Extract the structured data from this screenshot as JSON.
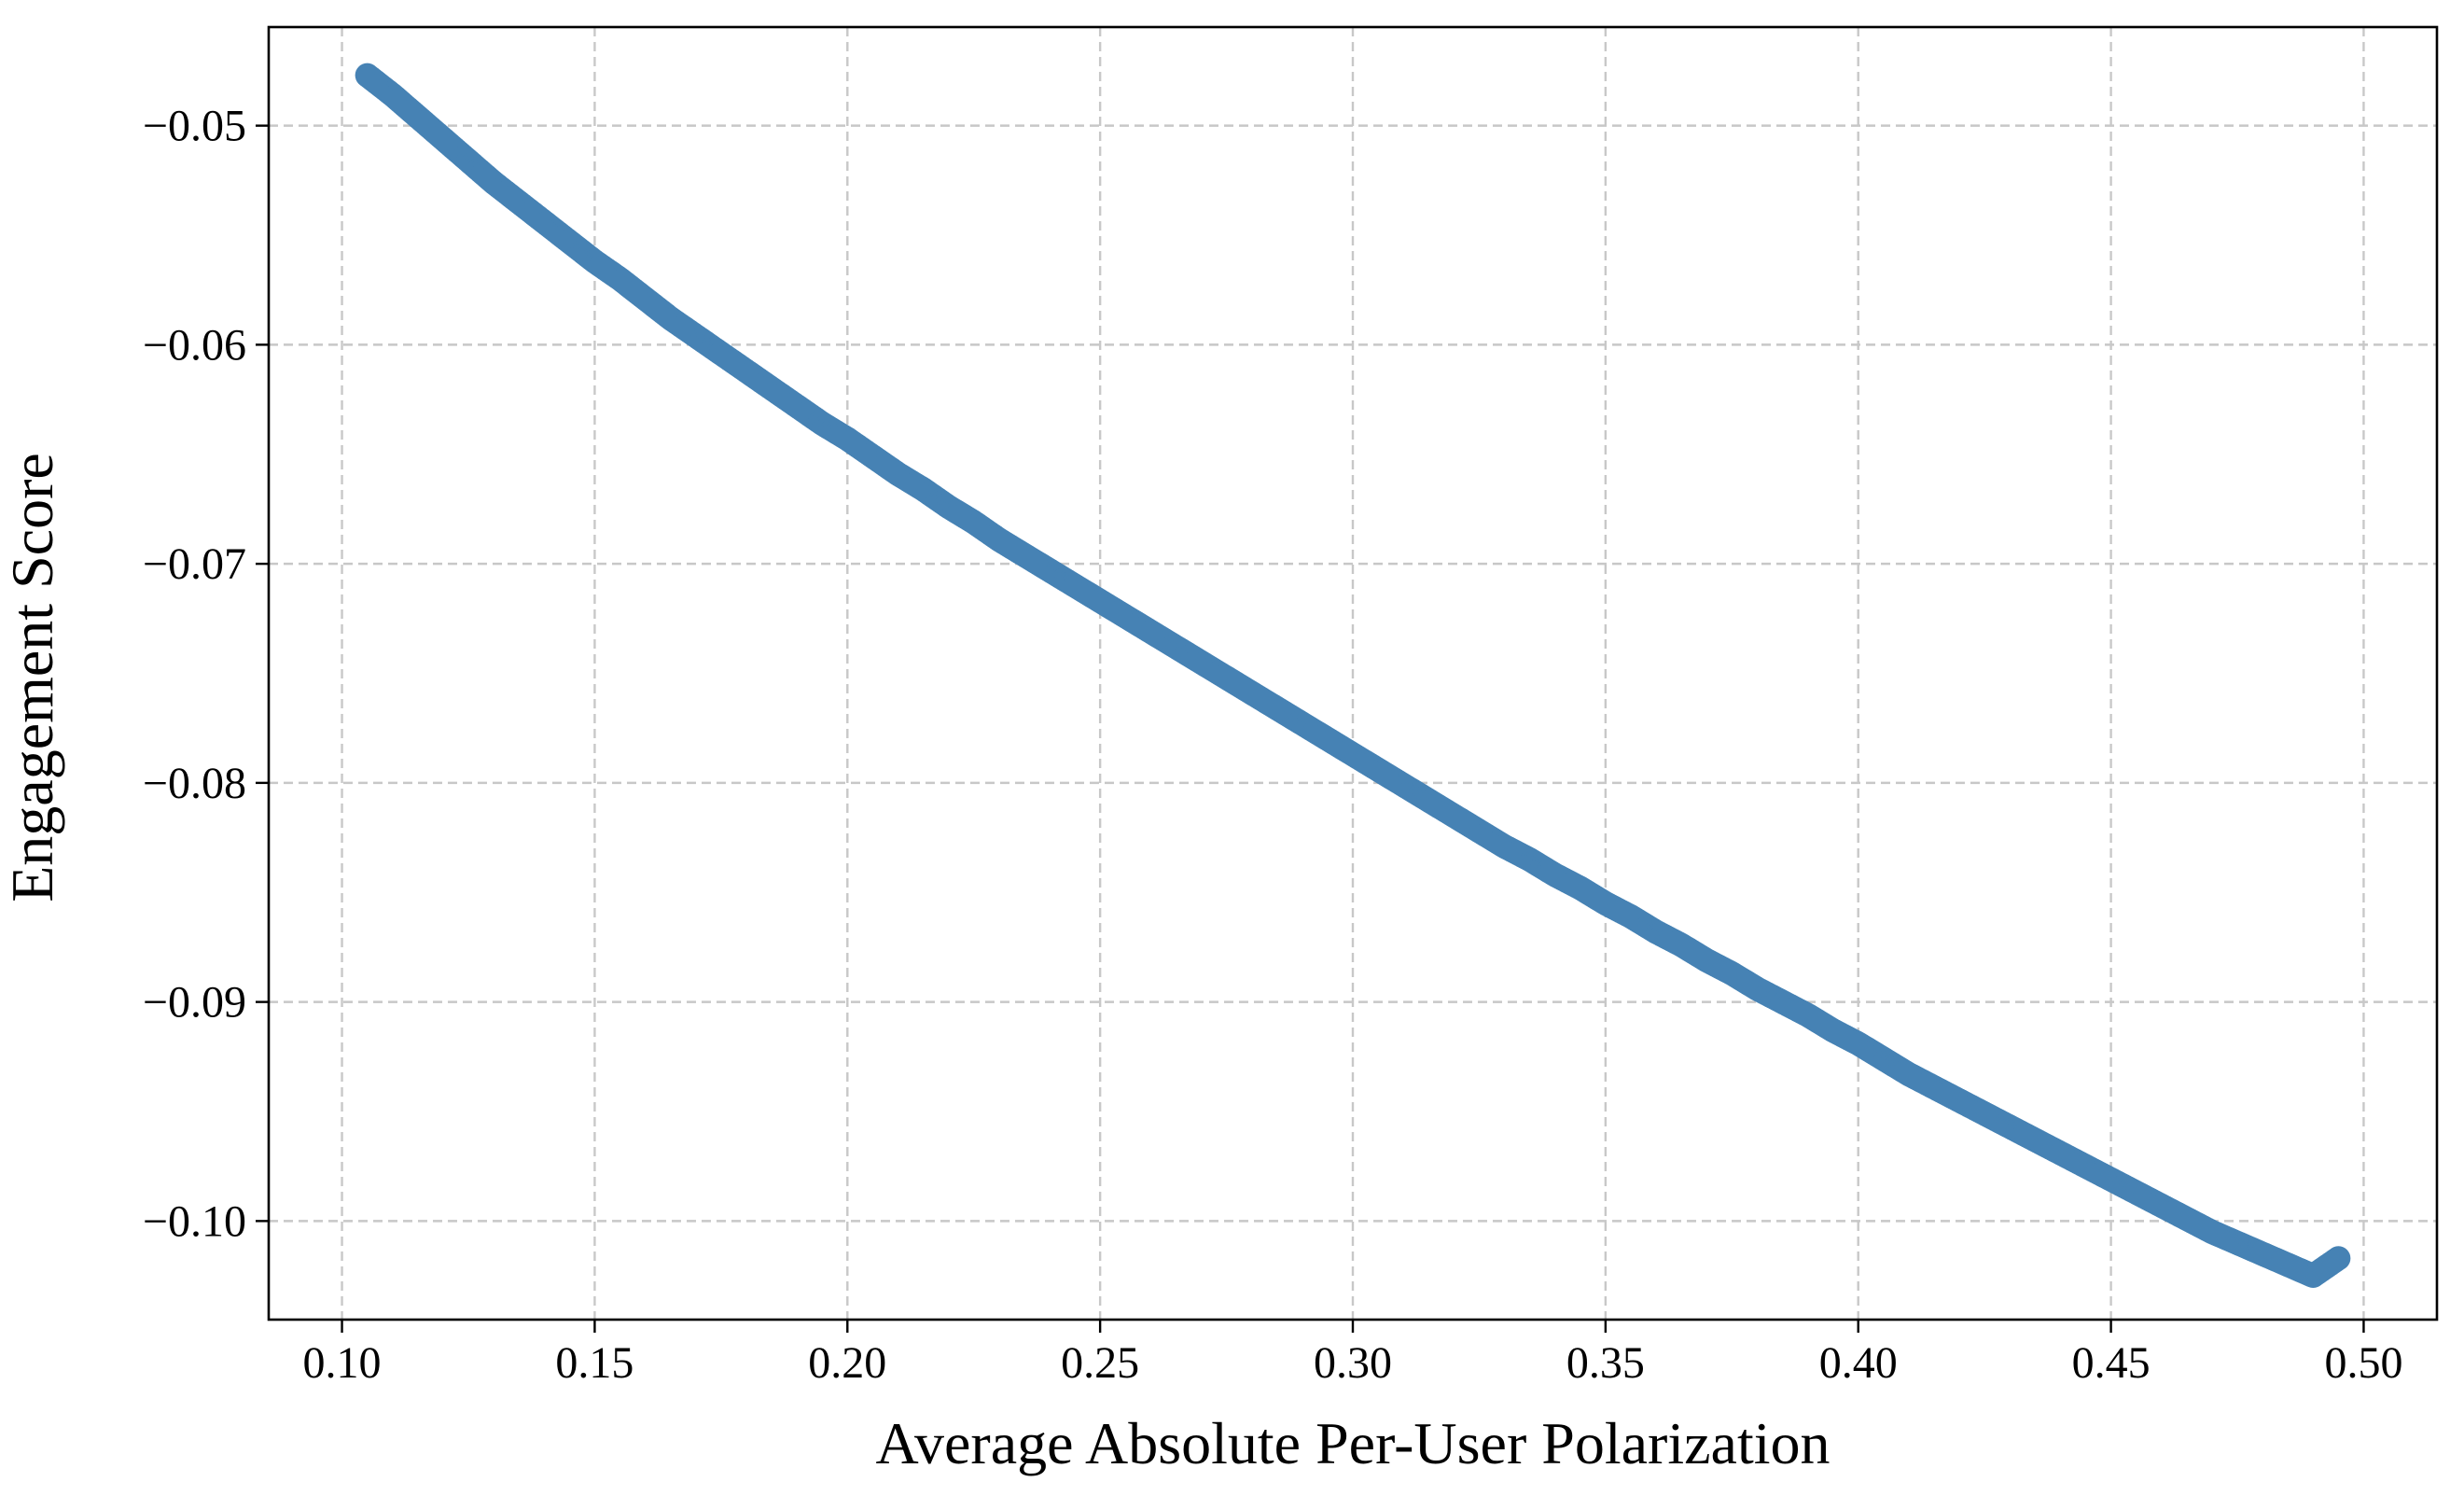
{
  "chart_data": {
    "type": "scatter",
    "title": "",
    "xlabel": "Average Absolute Per-User Polarization",
    "ylabel": "Engagement Score",
    "xlim": [
      0.0855,
      0.5145
    ],
    "ylim": [
      -0.1045,
      -0.0455
    ],
    "xticks": [
      0.1,
      0.15,
      0.2,
      0.25,
      0.3,
      0.35,
      0.4,
      0.45,
      0.5
    ],
    "yticks": [
      -0.1,
      -0.09,
      -0.08,
      -0.07,
      -0.06,
      -0.05
    ],
    "xtick_labels": [
      "0.10",
      "0.15",
      "0.20",
      "0.25",
      "0.30",
      "0.35",
      "0.40",
      "0.45",
      "0.50"
    ],
    "ytick_labels": [
      "−0.10",
      "−0.09",
      "−0.08",
      "−0.07",
      "−0.06",
      "−0.05"
    ],
    "grid": true,
    "marker_color": "#4682b4",
    "series": [
      {
        "x": [
          0.105,
          0.11,
          0.115,
          0.12,
          0.125,
          0.13,
          0.135,
          0.14,
          0.145,
          0.15,
          0.155,
          0.16,
          0.165,
          0.17,
          0.175,
          0.18,
          0.185,
          0.19,
          0.195,
          0.2,
          0.205,
          0.21,
          0.215,
          0.22,
          0.225,
          0.23,
          0.235,
          0.24,
          0.245,
          0.25,
          0.255,
          0.26,
          0.265,
          0.27,
          0.275,
          0.28,
          0.285,
          0.29,
          0.295,
          0.3,
          0.305,
          0.31,
          0.315,
          0.32,
          0.325,
          0.33,
          0.335,
          0.34,
          0.345,
          0.35,
          0.355,
          0.36,
          0.365,
          0.37,
          0.375,
          0.38,
          0.385,
          0.39,
          0.395,
          0.4,
          0.405,
          0.41,
          0.415,
          0.42,
          0.425,
          0.43,
          0.435,
          0.44,
          0.445,
          0.45,
          0.455,
          0.46,
          0.465,
          0.47,
          0.475,
          0.48,
          0.485,
          0.49,
          0.495
        ],
        "y": [
          -0.0477,
          -0.0486,
          -0.0496,
          -0.0506,
          -0.0516,
          -0.0526,
          -0.0535,
          -0.0544,
          -0.0553,
          -0.0562,
          -0.057,
          -0.0579,
          -0.0588,
          -0.0596,
          -0.0604,
          -0.0612,
          -0.062,
          -0.0628,
          -0.0636,
          -0.0643,
          -0.0651,
          -0.0659,
          -0.0666,
          -0.0674,
          -0.0681,
          -0.0689,
          -0.0696,
          -0.0703,
          -0.071,
          -0.0717,
          -0.0724,
          -0.0731,
          -0.0738,
          -0.0745,
          -0.0752,
          -0.0759,
          -0.0766,
          -0.0773,
          -0.078,
          -0.0787,
          -0.0794,
          -0.0801,
          -0.0808,
          -0.0815,
          -0.0822,
          -0.0829,
          -0.0835,
          -0.0842,
          -0.0848,
          -0.0855,
          -0.0861,
          -0.0868,
          -0.0874,
          -0.0881,
          -0.0887,
          -0.0894,
          -0.09,
          -0.0906,
          -0.0913,
          -0.0919,
          -0.0926,
          -0.0933,
          -0.0939,
          -0.0945,
          -0.0951,
          -0.0957,
          -0.0963,
          -0.0969,
          -0.0975,
          -0.0981,
          -0.0987,
          -0.0993,
          -0.0999,
          -0.1005,
          -0.101,
          -0.1015,
          -0.102,
          -0.1025,
          -0.1017
        ]
      }
    ]
  }
}
